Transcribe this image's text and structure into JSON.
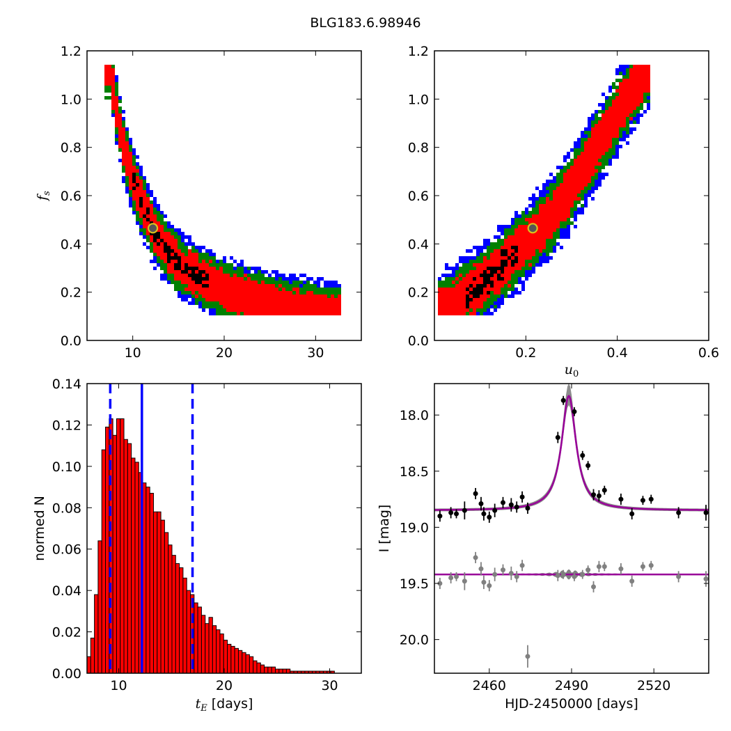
{
  "figure": {
    "title": "BLG183.6.98946"
  },
  "chart_data": [
    {
      "type": "heatmap",
      "panel": "top-left",
      "xlabel": "",
      "ylabel": "f_s",
      "xlim": [
        5,
        35
      ],
      "ylim": [
        0,
        1.2
      ],
      "xticks": [
        10,
        20,
        30
      ],
      "yticks": [
        0.0,
        0.2,
        0.4,
        0.6,
        0.8,
        1.0,
        1.2
      ],
      "levels": [
        "black",
        "red",
        "green",
        "blue"
      ],
      "colors": {
        "black": "#000000",
        "red": "#ff0000",
        "green": "#008000",
        "blue": "#0000ff"
      },
      "ridge": [
        [
          7.6,
          1.13
        ],
        [
          8.0,
          1.0
        ],
        [
          9.0,
          0.8
        ],
        [
          10.0,
          0.67
        ],
        [
          11.0,
          0.57
        ],
        [
          12.0,
          0.48
        ],
        [
          13.0,
          0.41
        ],
        [
          14.0,
          0.36
        ],
        [
          15.0,
          0.32
        ],
        [
          16.0,
          0.29
        ],
        [
          18.0,
          0.25
        ],
        [
          20.0,
          0.21
        ],
        [
          22.0,
          0.185
        ],
        [
          24.0,
          0.16
        ],
        [
          27.0,
          0.135
        ],
        [
          30.0,
          0.12
        ],
        [
          32.5,
          0.105
        ]
      ],
      "widths": {
        "black": 0.035,
        "red": 0.075,
        "green": 0.11,
        "blue": 0.14
      },
      "black_range": [
        10.0,
        18.2
      ],
      "best_fit": {
        "x": 12.2,
        "y": 0.465
      }
    },
    {
      "type": "heatmap",
      "panel": "top-right",
      "xlabel": "u_0",
      "ylabel": "",
      "xlim": [
        0,
        0.6
      ],
      "ylim": [
        0,
        1.2
      ],
      "xticks": [
        0.2,
        0.4,
        0.6
      ],
      "yticks": [
        0.0,
        0.2,
        0.4,
        0.6,
        0.8,
        1.0,
        1.2
      ],
      "levels": [
        "black",
        "red",
        "green",
        "blue"
      ],
      "colors": {
        "black": "#000000",
        "red": "#ff0000",
        "green": "#008000",
        "blue": "#0000ff"
      },
      "ridge": [
        [
          0.02,
          0.12
        ],
        [
          0.06,
          0.17
        ],
        [
          0.1,
          0.23
        ],
        [
          0.15,
          0.31
        ],
        [
          0.2,
          0.4
        ],
        [
          0.25,
          0.5
        ],
        [
          0.3,
          0.63
        ],
        [
          0.35,
          0.78
        ],
        [
          0.4,
          0.94
        ],
        [
          0.45,
          1.08
        ],
        [
          0.47,
          1.13
        ]
      ],
      "widths": {
        "black": 0.045,
        "red": 0.09,
        "green": 0.13,
        "blue": 0.17
      },
      "black_range": [
        0.07,
        0.18
      ],
      "best_fit": {
        "x": 0.215,
        "y": 0.465
      }
    },
    {
      "type": "bar",
      "panel": "bottom-left",
      "xlabel": "t_E [days]",
      "ylabel": "normed N",
      "xlim": [
        7,
        33
      ],
      "ylim": [
        0,
        0.14
      ],
      "xticks": [
        10,
        20,
        30
      ],
      "yticks": [
        0.0,
        0.02,
        0.04,
        0.06,
        0.08,
        0.1,
        0.12,
        0.14
      ],
      "bin_width": 0.35,
      "bin_start": 7.0,
      "values": [
        0.008,
        0.017,
        0.038,
        0.064,
        0.108,
        0.119,
        0.123,
        0.115,
        0.123,
        0.123,
        0.113,
        0.111,
        0.104,
        0.102,
        0.097,
        0.092,
        0.09,
        0.087,
        0.078,
        0.078,
        0.074,
        0.068,
        0.062,
        0.057,
        0.053,
        0.051,
        0.046,
        0.04,
        0.038,
        0.034,
        0.032,
        0.028,
        0.024,
        0.027,
        0.023,
        0.021,
        0.019,
        0.016,
        0.014,
        0.013,
        0.012,
        0.011,
        0.01,
        0.009,
        0.008,
        0.006,
        0.005,
        0.004,
        0.003,
        0.003,
        0.003,
        0.002,
        0.002,
        0.002,
        0.002,
        0.001,
        0.001,
        0.001,
        0.001,
        0.001,
        0.001,
        0.001,
        0.001,
        0.001,
        0.001,
        0.001,
        0.001,
        0.0,
        0.0,
        0.0,
        0.0,
        0.0,
        0.0,
        0.0
      ],
      "bar_color": "#ff0000",
      "vlines": {
        "median": 12.2,
        "lower": 9.2,
        "upper": 17.0,
        "color": "#0000ff"
      }
    },
    {
      "type": "scatter",
      "panel": "bottom-right",
      "xlabel": "HJD-2450000 [days]",
      "ylabel": "I [mag]",
      "xlim": [
        2440,
        2540
      ],
      "ylim": [
        20.3,
        17.72
      ],
      "xticks": [
        2460,
        2490,
        2520
      ],
      "yticks": [
        18.0,
        18.5,
        19.0,
        19.5,
        20.0
      ],
      "model": {
        "t0": 2489.0,
        "baseline": 18.85,
        "peak": 17.83,
        "tau": 3.2,
        "resid_baseline": 19.42
      },
      "series": [
        {
          "name": "",
          "color": "#000000",
          "points": [
            [
              2442,
              18.9,
              0.05
            ],
            [
              2446,
              18.87,
              0.05
            ],
            [
              2448,
              18.88,
              0.04
            ],
            [
              2451,
              18.85,
              0.08
            ],
            [
              2455,
              18.7,
              0.05
            ],
            [
              2457,
              18.79,
              0.06
            ],
            [
              2458,
              18.88,
              0.06
            ],
            [
              2460,
              18.91,
              0.05
            ],
            [
              2462,
              18.85,
              0.06
            ],
            [
              2465,
              18.78,
              0.05
            ],
            [
              2468,
              18.8,
              0.06
            ],
            [
              2470,
              18.82,
              0.05
            ],
            [
              2472,
              18.73,
              0.05
            ],
            [
              2474,
              18.83,
              0.05
            ],
            [
              2485,
              18.2,
              0.05
            ],
            [
              2487,
              17.87,
              0.04
            ],
            [
              2491,
              17.97,
              0.04
            ],
            [
              2494,
              18.36,
              0.04
            ],
            [
              2496,
              18.45,
              0.04
            ],
            [
              2498,
              18.71,
              0.05
            ],
            [
              2500,
              18.72,
              0.05
            ],
            [
              2502,
              18.67,
              0.04
            ],
            [
              2508,
              18.75,
              0.05
            ],
            [
              2512,
              18.88,
              0.05
            ],
            [
              2516,
              18.76,
              0.04
            ],
            [
              2519,
              18.75,
              0.04
            ],
            [
              2529,
              18.87,
              0.05
            ],
            [
              2539,
              18.87,
              0.07
            ]
          ]
        },
        {
          "name": "",
          "color": "#808080",
          "points": [
            [
              2442,
              19.5,
              0.05
            ],
            [
              2446,
              19.45,
              0.05
            ],
            [
              2448,
              19.44,
              0.04
            ],
            [
              2451,
              19.48,
              0.08
            ],
            [
              2455,
              19.27,
              0.05
            ],
            [
              2457,
              19.37,
              0.06
            ],
            [
              2458,
              19.49,
              0.06
            ],
            [
              2460,
              19.52,
              0.05
            ],
            [
              2462,
              19.42,
              0.06
            ],
            [
              2465,
              19.38,
              0.05
            ],
            [
              2468,
              19.41,
              0.06
            ],
            [
              2470,
              19.44,
              0.05
            ],
            [
              2472,
              19.34,
              0.05
            ],
            [
              2474,
              20.15,
              0.1
            ],
            [
              2485,
              19.43,
              0.05
            ],
            [
              2487,
              19.42,
              0.04
            ],
            [
              2491,
              19.44,
              0.04
            ],
            [
              2494,
              19.42,
              0.04
            ],
            [
              2496,
              19.38,
              0.04
            ],
            [
              2498,
              19.53,
              0.05
            ],
            [
              2500,
              19.35,
              0.05
            ],
            [
              2502,
              19.35,
              0.04
            ],
            [
              2508,
              19.37,
              0.05
            ],
            [
              2512,
              19.48,
              0.05
            ],
            [
              2516,
              19.35,
              0.04
            ],
            [
              2519,
              19.34,
              0.04
            ],
            [
              2529,
              19.44,
              0.05
            ],
            [
              2539,
              19.46,
              0.07
            ]
          ]
        }
      ],
      "colors": {
        "model": "#990099",
        "band": "#808080"
      }
    }
  ]
}
